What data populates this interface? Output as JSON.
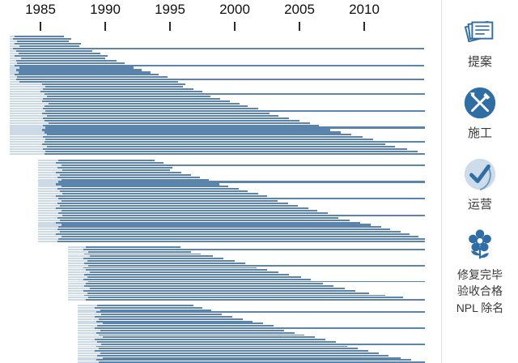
{
  "colors": {
    "bar": "#5b84ad",
    "bar_light": "#ccdae7",
    "icon": "#2f6ea5",
    "axis_text": "#111111",
    "label_text": "#3a3a3a",
    "divider": "#dcdcdc"
  },
  "legend": {
    "items": [
      {
        "icon": "documents-icon",
        "label": "提案"
      },
      {
        "icon": "tools-icon",
        "label": "施工"
      },
      {
        "icon": "checkmark-icon",
        "label": "运营"
      },
      {
        "icon": "flower-icon",
        "lines": [
          "修复完毕",
          "验收合格",
          "NPL 除名"
        ]
      }
    ]
  },
  "chart_data": {
    "type": "gantt",
    "title": "",
    "xlabel": "",
    "ylabel": "",
    "legend_position": "right",
    "x_axis": {
      "tick_labels": [
        "1985",
        "1990",
        "1995",
        "2000",
        "2005",
        "2010"
      ],
      "tick_years": [
        1985,
        1990,
        1995,
        2000,
        2005,
        2010
      ],
      "range": [
        1982.5,
        2015
      ]
    },
    "groups": [
      {
        "name": "cohort-1",
        "light_start": 1982.6,
        "bars": [
          [
            1983.0,
            1986.8
          ],
          [
            1982.9,
            1987.4
          ],
          [
            1983.2,
            1987.2
          ],
          [
            1983.0,
            1988.1
          ],
          [
            1983.4,
            1988.0
          ],
          [
            1982.9,
            2014.6
          ],
          [
            1983.1,
            1989.0
          ],
          [
            1983.3,
            1989.6
          ],
          [
            1983.0,
            1990.2
          ],
          [
            1983.5,
            1990.0
          ],
          [
            1983.1,
            1990.9
          ],
          [
            1983.2,
            1991.5
          ],
          [
            1983.0,
            2014.6
          ],
          [
            1983.4,
            1992.2
          ],
          [
            1983.1,
            1992.8
          ],
          [
            1983.3,
            1993.5
          ],
          [
            1983.0,
            1994.1
          ],
          [
            1983.2,
            1994.8
          ],
          [
            1983.1,
            2014.6
          ],
          [
            1983.4,
            1995.6
          ],
          [
            1985.1,
            1996.2
          ],
          [
            1985.4,
            1996.0
          ],
          [
            1985.2,
            1996.8
          ],
          [
            1985.0,
            1997.5
          ],
          [
            1985.3,
            2014.7
          ],
          [
            1985.5,
            1998.1
          ],
          [
            1985.2,
            1998.9
          ],
          [
            1985.1,
            1999.6
          ],
          [
            1985.6,
            2000.4
          ],
          [
            1985.3,
            2001.0
          ],
          [
            1985.2,
            2001.8
          ],
          [
            1985.4,
            2014.7
          ],
          [
            1985.1,
            2002.7
          ],
          [
            1985.5,
            2003.4
          ],
          [
            1985.2,
            2004.2
          ],
          [
            1985.3,
            2005.0
          ],
          [
            1985.6,
            2005.8
          ],
          [
            1985.2,
            2006.5
          ],
          [
            1985.4,
            2014.7
          ],
          [
            1985.1,
            2007.4
          ],
          [
            1985.3,
            2008.2
          ],
          [
            1985.5,
            2009.0
          ],
          [
            1985.2,
            2009.9
          ],
          [
            1985.4,
            2010.7
          ],
          [
            1985.3,
            2014.7
          ],
          [
            1985.1,
            2011.6
          ],
          [
            1985.5,
            2012.4
          ],
          [
            1985.2,
            2013.3
          ],
          [
            1985.4,
            2014.1
          ],
          [
            1985.3,
            2014.7
          ]
        ]
      },
      {
        "name": "cohort-2",
        "light_start": 1984.8,
        "bars": [
          [
            1986.4,
            1993.8
          ],
          [
            1986.2,
            1994.5
          ],
          [
            1986.6,
            2014.7
          ],
          [
            1986.3,
            1995.2
          ],
          [
            1986.7,
            1995.0
          ],
          [
            1986.2,
            1995.9
          ],
          [
            1986.5,
            1996.6
          ],
          [
            1986.3,
            1997.3
          ],
          [
            1986.6,
            1998.0
          ],
          [
            1986.4,
            2014.7
          ],
          [
            1986.2,
            1998.8
          ],
          [
            1986.6,
            1999.5
          ],
          [
            1986.3,
            2000.3
          ],
          [
            1986.5,
            2001.0
          ],
          [
            1986.7,
            2001.8
          ],
          [
            1986.2,
            2002.5
          ],
          [
            1986.4,
            2014.7
          ],
          [
            1986.6,
            2003.3
          ],
          [
            1986.3,
            2004.1
          ],
          [
            1986.5,
            2004.9
          ],
          [
            1986.2,
            2005.7
          ],
          [
            1986.6,
            2006.4
          ],
          [
            1986.4,
            2007.2
          ],
          [
            1986.7,
            2014.7
          ],
          [
            1986.3,
            2008.0
          ],
          [
            1986.5,
            2008.9
          ],
          [
            1986.2,
            2009.7
          ],
          [
            1986.6,
            2010.5
          ],
          [
            1986.4,
            2011.3
          ],
          [
            1986.3,
            2012.0
          ],
          [
            1986.5,
            2012.8
          ],
          [
            1986.2,
            2013.5
          ],
          [
            1986.6,
            2014.2
          ],
          [
            1986.4,
            2014.7
          ],
          [
            1986.3,
            2014.7
          ]
        ]
      },
      {
        "name": "cohort-3",
        "light_start": 1987.1,
        "bars": [
          [
            1988.5,
            1995.8
          ],
          [
            1988.3,
            2014.7
          ],
          [
            1988.7,
            1996.6
          ],
          [
            1988.4,
            1997.4
          ],
          [
            1988.8,
            1998.3
          ],
          [
            1988.3,
            1999.1
          ],
          [
            1988.6,
            2000.0
          ],
          [
            1988.4,
            2000.8
          ],
          [
            1988.7,
            2014.7
          ],
          [
            1988.3,
            2001.7
          ],
          [
            1988.5,
            2002.5
          ],
          [
            1988.8,
            2003.4
          ],
          [
            1988.4,
            2004.2
          ],
          [
            1988.6,
            2005.1
          ],
          [
            1988.3,
            2005.9
          ],
          [
            1988.7,
            2014.7
          ],
          [
            1988.5,
            2006.8
          ],
          [
            1988.4,
            2007.6
          ],
          [
            1988.8,
            2008.5
          ],
          [
            1988.3,
            2009.3
          ],
          [
            1988.6,
            2010.4
          ],
          [
            1988.4,
            2011.6
          ],
          [
            1988.7,
            2013.0
          ],
          [
            1988.5,
            2014.7
          ]
        ]
      },
      {
        "name": "cohort-4",
        "light_start": 1987.9,
        "bars": [
          [
            1989.4,
            1996.8
          ],
          [
            1989.2,
            1997.5
          ],
          [
            1989.6,
            1998.2
          ],
          [
            1989.3,
            2014.7
          ],
          [
            1989.7,
            1999.0
          ],
          [
            1989.2,
            1999.8
          ],
          [
            1989.5,
            2000.6
          ],
          [
            1989.3,
            2001.4
          ],
          [
            1989.8,
            2002.2
          ],
          [
            1989.4,
            2003.0
          ],
          [
            1989.2,
            2014.7
          ],
          [
            1989.6,
            2003.8
          ],
          [
            1989.3,
            2004.6
          ],
          [
            1989.5,
            2005.4
          ],
          [
            1989.8,
            2006.2
          ],
          [
            1989.2,
            2007.0
          ],
          [
            1989.4,
            2007.8
          ],
          [
            1989.7,
            2014.7
          ],
          [
            1989.3,
            2008.7
          ],
          [
            1989.5,
            2009.5
          ],
          [
            1989.2,
            2010.3
          ],
          [
            1989.6,
            2011.1
          ],
          [
            1989.4,
            2011.9
          ],
          [
            1989.8,
            2012.8
          ],
          [
            1989.3,
            2013.6
          ],
          [
            1989.5,
            2014.7
          ]
        ]
      }
    ]
  }
}
